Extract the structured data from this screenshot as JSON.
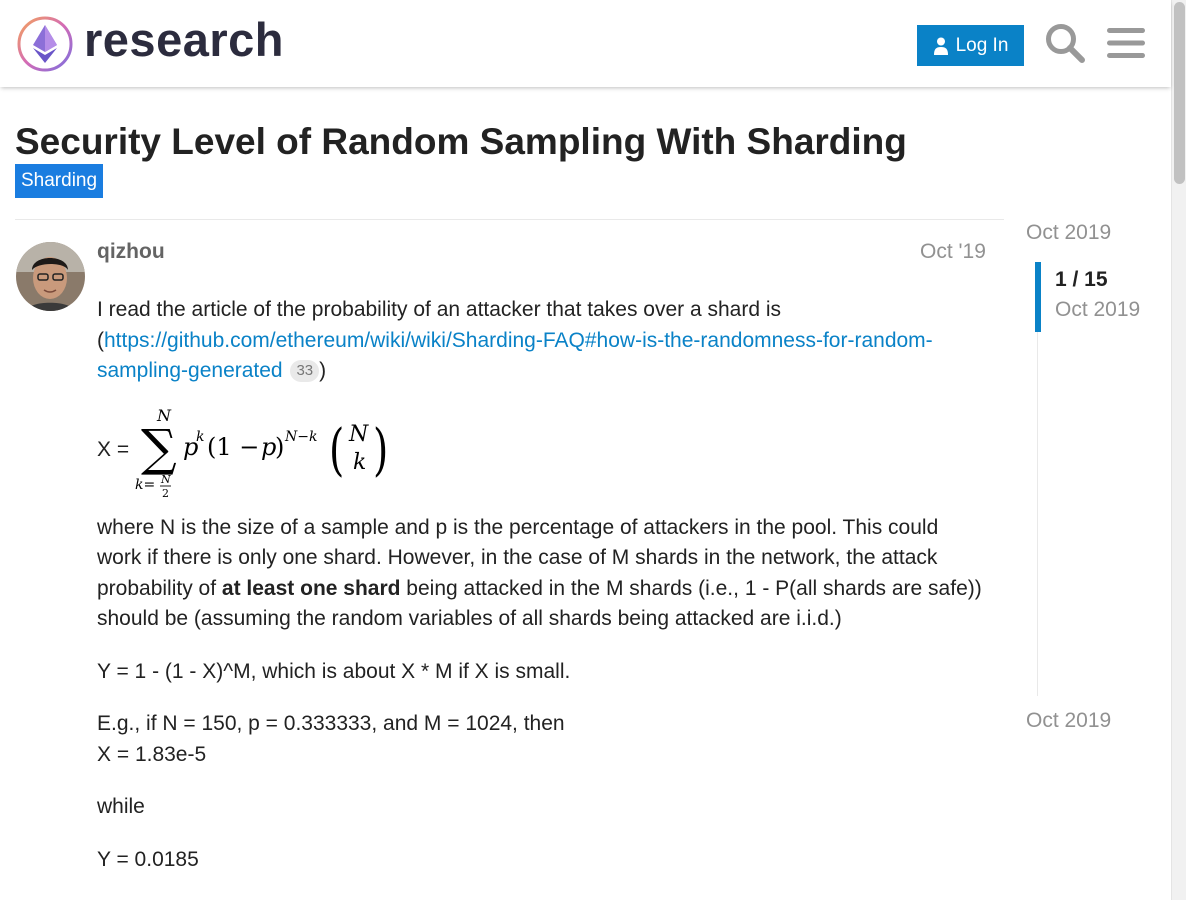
{
  "header": {
    "logo_text": "research",
    "login_label": "Log In",
    "brand_color": "#0a82c7"
  },
  "topic": {
    "title": "Security Level of Random Sampling With Sharding",
    "category": "Sharding",
    "category_color": "#1a7de0"
  },
  "post": {
    "username": "qizhou",
    "date": "Oct '19",
    "intro": "I read the article of the probability of an attacker that takes over a shard is (",
    "link_text": "https://github.com/ethereum/wiki/wiki/Sharding-FAQ#how-is-the-randomness-for-random-sampling-generated",
    "link_clicks": "33",
    "intro_end": ")",
    "formula_prefix": "X =",
    "para2_a": "where N is the size of a sample and p is the percentage of attackers in the pool. This could work if there is only one shard. However, in the case of M shards in the network, the attack probability of ",
    "para2_bold": "at least one shard",
    "para2_b": " being attacked in the M shards (i.e., 1 - P(all shards are safe)) should be (assuming the random variables of all shards being attacked are i.i.d.)",
    "para3": "Y = 1 - (1 - X)^M, which is about X * M if X is small.",
    "para4_line1": "E.g., if N = 150, p = 0.333333, and M = 1024, then",
    "para4_line2": "X = 1.83e-5",
    "para5": "while",
    "para6": "Y = 0.0185"
  },
  "timeline": {
    "start": "Oct 2019",
    "position": "1 / 15",
    "position_date": "Oct 2019",
    "end": "Oct 2019"
  }
}
